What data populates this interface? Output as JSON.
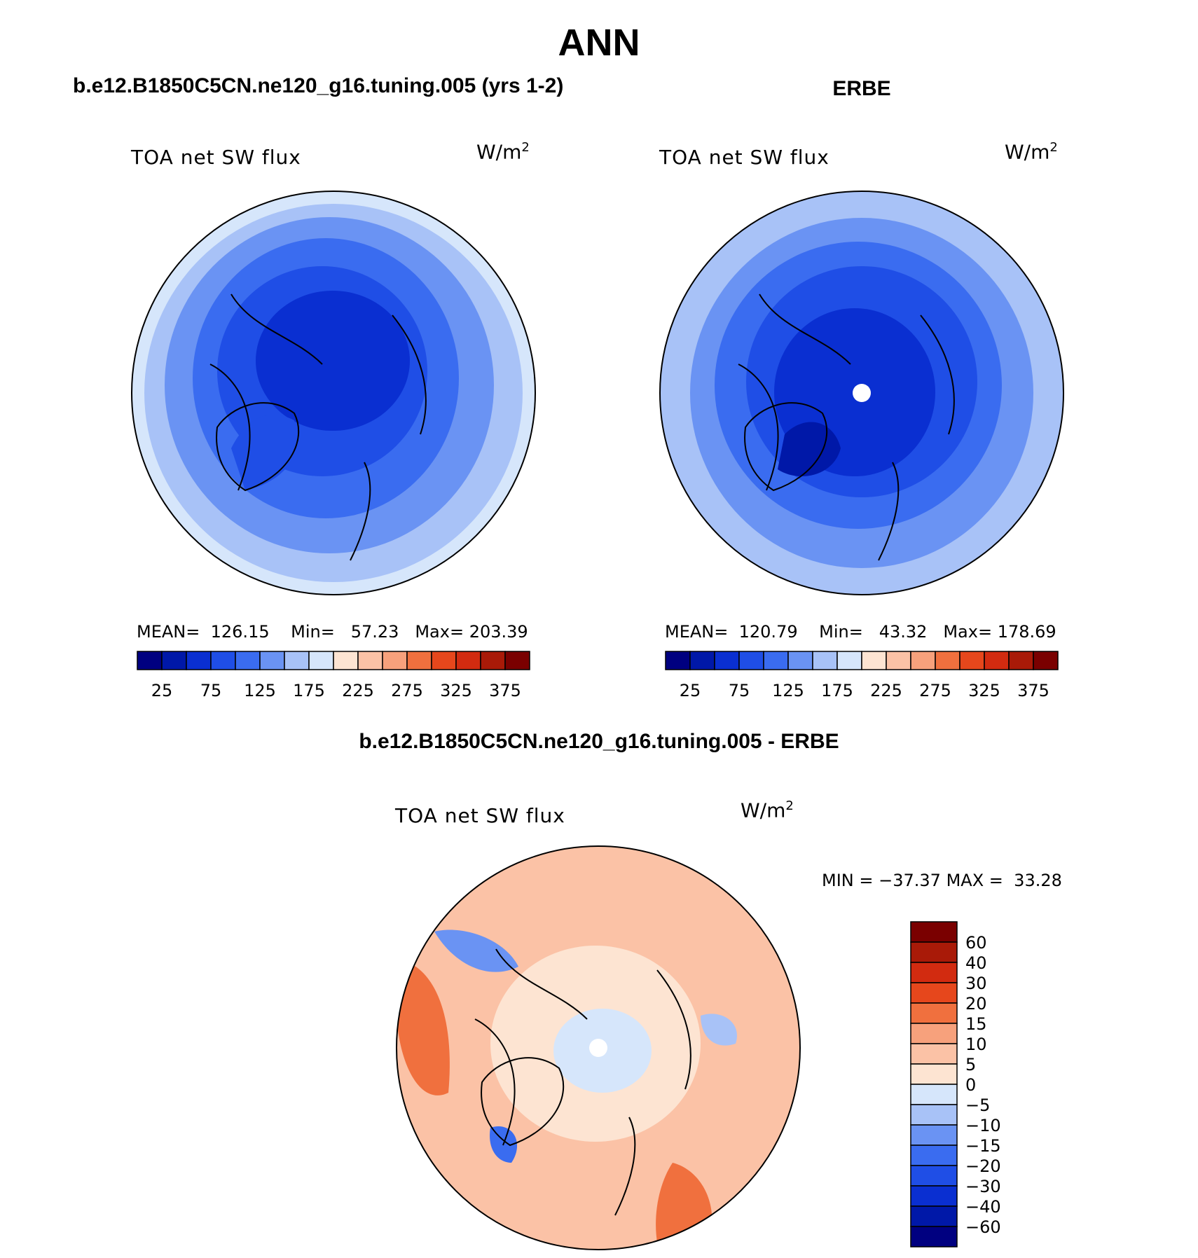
{
  "figure": {
    "season": "ANN",
    "variable": "TOA net SW flux",
    "units_base": "W/m",
    "units_exp": "2"
  },
  "panels": {
    "model": {
      "title": "b.e12.B1850C5CN.ne120_g16.tuning.005 (yrs 1-2)",
      "mean_label": "MEAN=",
      "mean": "126.15",
      "min_label": "Min=",
      "min": "57.23",
      "max_label": "Max=",
      "max": "203.39"
    },
    "obs": {
      "title": "ERBE",
      "mean_label": "MEAN=",
      "mean": "120.79",
      "min_label": "Min=",
      "min": "43.32",
      "max_label": "Max=",
      "max": "178.69"
    },
    "diff": {
      "title": "b.e12.B1850C5CN.ne120_g16.tuning.005 - ERBE",
      "min_label": "MIN =",
      "min": "−37.37",
      "max_label": "MAX =",
      "max": "33.28"
    }
  },
  "chart_data": [
    {
      "type": "heatmap",
      "title": "b.e12.B1850C5CN.ne120_g16.tuning.005 (yrs 1-2)",
      "projection": "north polar stereographic",
      "variable": "TOA net SW flux",
      "units": "W/m2",
      "mean": 126.15,
      "min": 57.23,
      "max": 203.39,
      "levels": [
        25,
        50,
        75,
        100,
        125,
        150,
        175,
        200,
        225,
        250,
        275,
        300,
        325,
        350,
        375
      ],
      "colorbar_tick_labels": [
        "25",
        "75",
        "125",
        "175",
        "225",
        "275",
        "325",
        "375"
      ],
      "colors": [
        "#000080",
        "#0018a8",
        "#0a2fd1",
        "#1f4ee6",
        "#3a6cf0",
        "#6a93f3",
        "#a8c2f7",
        "#d6e6fb",
        "#fde4d2",
        "#fbc2a6",
        "#f7a17c",
        "#f0703e",
        "#e6471c",
        "#d22b10",
        "#a91a08",
        "#7a0000"
      ]
    },
    {
      "type": "heatmap",
      "title": "ERBE",
      "projection": "north polar stereographic",
      "variable": "TOA net SW flux",
      "units": "W/m2",
      "mean": 120.79,
      "min": 43.32,
      "max": 178.69,
      "levels": [
        25,
        50,
        75,
        100,
        125,
        150,
        175,
        200,
        225,
        250,
        275,
        300,
        325,
        350,
        375
      ],
      "colorbar_tick_labels": [
        "25",
        "75",
        "125",
        "175",
        "225",
        "275",
        "325",
        "375"
      ],
      "colors": [
        "#000080",
        "#0018a8",
        "#0a2fd1",
        "#1f4ee6",
        "#3a6cf0",
        "#6a93f3",
        "#a8c2f7",
        "#d6e6fb",
        "#fde4d2",
        "#fbc2a6",
        "#f7a17c",
        "#f0703e",
        "#e6471c",
        "#d22b10",
        "#a91a08",
        "#7a0000"
      ]
    },
    {
      "type": "heatmap",
      "title": "b.e12.B1850C5CN.ne120_g16.tuning.005 - ERBE",
      "projection": "north polar stereographic",
      "variable": "TOA net SW flux",
      "units": "W/m2",
      "min": -37.37,
      "max": 33.28,
      "levels": [
        -60,
        -40,
        -30,
        -20,
        -15,
        -10,
        -5,
        0,
        5,
        10,
        15,
        20,
        30,
        40,
        60
      ],
      "colorbar_tick_labels": [
        "60",
        "40",
        "30",
        "20",
        "15",
        "10",
        "5",
        "0",
        "−5",
        "−10",
        "−15",
        "−20",
        "−30",
        "−40",
        "−60"
      ],
      "colors": [
        "#7a0000",
        "#a91a08",
        "#d22b10",
        "#e6471c",
        "#f0703e",
        "#f7a17c",
        "#fbc2a6",
        "#fde4d2",
        "#d6e6fb",
        "#a8c2f7",
        "#6a93f3",
        "#3a6cf0",
        "#1f4ee6",
        "#0a2fd1",
        "#0018a8",
        "#000080"
      ]
    }
  ]
}
